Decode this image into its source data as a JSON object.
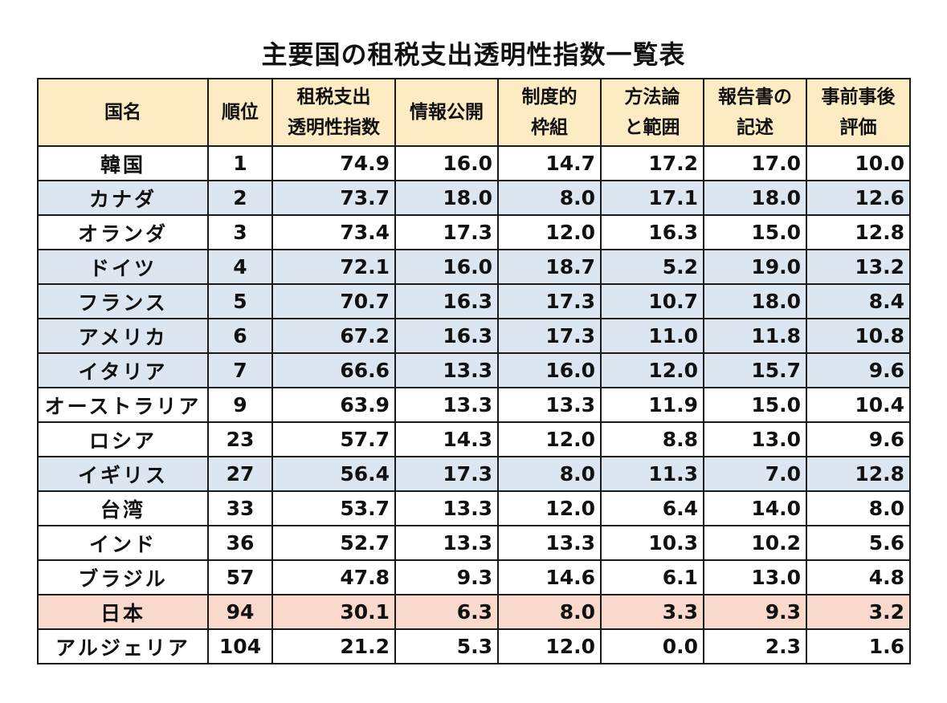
{
  "title": "主要国の租税支出透明性指数一覧表",
  "colors": {
    "header_bg": "#fdebc4",
    "row_blue": "#dce6f1",
    "row_pink": "#f9d9cc",
    "row_white": "#ffffff",
    "border": "#1a1a1a"
  },
  "chart_data": {
    "type": "table",
    "columns": [
      {
        "line1": "国名",
        "line2": ""
      },
      {
        "line1": "順位",
        "line2": ""
      },
      {
        "line1": "租税支出",
        "line2": "透明性指数"
      },
      {
        "line1": "情報公開",
        "line2": ""
      },
      {
        "line1": "制度的",
        "line2": "枠組"
      },
      {
        "line1": "方法論",
        "line2": "と範囲"
      },
      {
        "line1": "報告書の",
        "line2": "記述"
      },
      {
        "line1": "事前事後",
        "line2": "評価"
      }
    ],
    "rows": [
      {
        "country": "韓国",
        "rank": "1",
        "values": [
          "74.9",
          "16.0",
          "14.7",
          "17.2",
          "17.0",
          "10.0"
        ],
        "highlight": "white"
      },
      {
        "country": "カナダ",
        "rank": "2",
        "values": [
          "73.7",
          "18.0",
          "8.0",
          "17.1",
          "18.0",
          "12.6"
        ],
        "highlight": "blue"
      },
      {
        "country": "オランダ",
        "rank": "3",
        "values": [
          "73.4",
          "17.3",
          "12.0",
          "16.3",
          "15.0",
          "12.8"
        ],
        "highlight": "white"
      },
      {
        "country": "ドイツ",
        "rank": "4",
        "values": [
          "72.1",
          "16.0",
          "18.7",
          "5.2",
          "19.0",
          "13.2"
        ],
        "highlight": "blue"
      },
      {
        "country": "フランス",
        "rank": "5",
        "values": [
          "70.7",
          "16.3",
          "17.3",
          "10.7",
          "18.0",
          "8.4"
        ],
        "highlight": "blue"
      },
      {
        "country": "アメリカ",
        "rank": "6",
        "values": [
          "67.2",
          "16.3",
          "17.3",
          "11.0",
          "11.8",
          "10.8"
        ],
        "highlight": "blue"
      },
      {
        "country": "イタリア",
        "rank": "7",
        "values": [
          "66.6",
          "13.3",
          "16.0",
          "12.0",
          "15.7",
          "9.6"
        ],
        "highlight": "blue"
      },
      {
        "country": "オーストラリア",
        "rank": "9",
        "values": [
          "63.9",
          "13.3",
          "13.3",
          "11.9",
          "15.0",
          "10.4"
        ],
        "highlight": "white"
      },
      {
        "country": "ロシア",
        "rank": "23",
        "values": [
          "57.7",
          "14.3",
          "12.0",
          "8.8",
          "13.0",
          "9.6"
        ],
        "highlight": "white"
      },
      {
        "country": "イギリス",
        "rank": "27",
        "values": [
          "56.4",
          "17.3",
          "8.0",
          "11.3",
          "7.0",
          "12.8"
        ],
        "highlight": "blue"
      },
      {
        "country": "台湾",
        "rank": "33",
        "values": [
          "53.7",
          "13.3",
          "12.0",
          "6.4",
          "14.0",
          "8.0"
        ],
        "highlight": "white"
      },
      {
        "country": "インド",
        "rank": "36",
        "values": [
          "52.7",
          "13.3",
          "13.3",
          "10.3",
          "10.2",
          "5.6"
        ],
        "highlight": "white"
      },
      {
        "country": "ブラジル",
        "rank": "57",
        "values": [
          "47.8",
          "9.3",
          "14.6",
          "6.1",
          "13.0",
          "4.8"
        ],
        "highlight": "white"
      },
      {
        "country": "日本",
        "rank": "94",
        "values": [
          "30.1",
          "6.3",
          "8.0",
          "3.3",
          "9.3",
          "3.2"
        ],
        "highlight": "pink"
      },
      {
        "country": "アルジェリア",
        "rank": "104",
        "values": [
          "21.2",
          "5.3",
          "12.0",
          "0.0",
          "2.3",
          "1.6"
        ],
        "highlight": "white"
      }
    ]
  }
}
